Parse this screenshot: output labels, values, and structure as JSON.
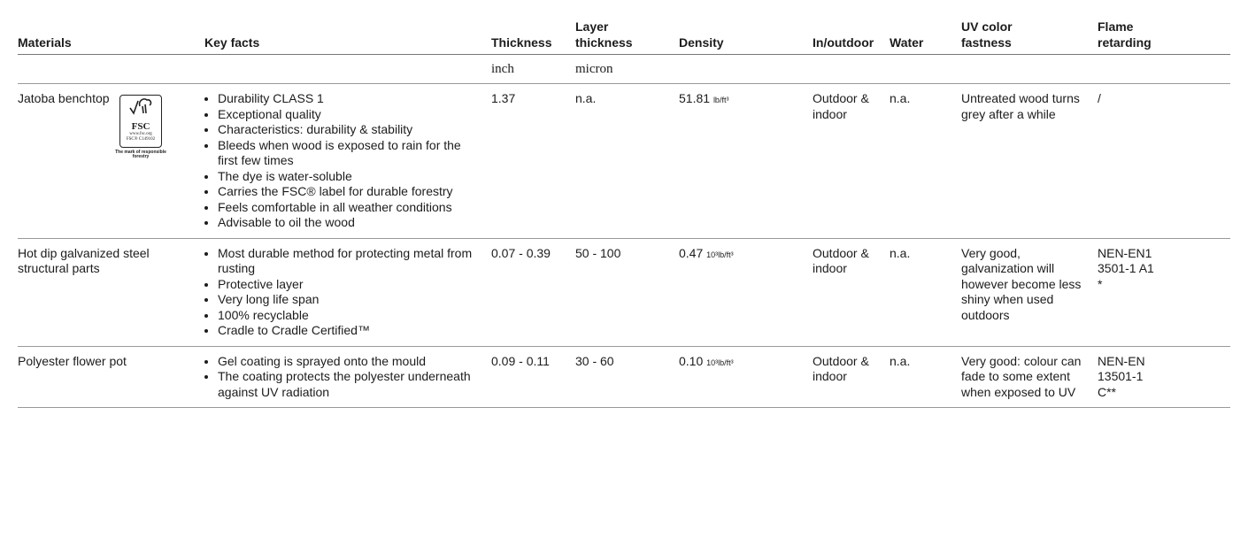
{
  "header": {
    "columns": [
      "Materials",
      "Key facts",
      "Thickness",
      "Layer thickness",
      "Density",
      "In/outdoor",
      "Water",
      "UV color fastness",
      "Flame retarding"
    ]
  },
  "units": {
    "thickness": "inch",
    "layer_thickness": "micron"
  },
  "logo": {
    "brand": "FSC",
    "site": "www.fsc.org",
    "code": "FSC® C149102",
    "tagline": "The mark of responsible forestry"
  },
  "table": {
    "rows": [
      {
        "material": "Jatoba benchtop",
        "facts": [
          "Durability CLASS 1",
          "Exceptional quality",
          "Characteristics: durability & stability",
          "Bleeds when wood is exposed to rain for the first few times",
          "The dye is water-soluble",
          "Carries the FSC® label for durable forestry",
          "Feels comfortable in all weather conditions",
          "Advisable to oil the wood"
        ],
        "thickness": "1.37",
        "layer": "n.a.",
        "density": {
          "value": "51.81",
          "unit": "lb/ft³"
        },
        "inout": "Outdoor & indoor",
        "water": "n.a.",
        "uv": "Untreated wood turns grey after a while",
        "flame": "/"
      },
      {
        "material": "Hot dip galvanized steel structural parts",
        "facts": [
          "Most durable method for protecting metal from rusting",
          "Protective layer",
          "Very long life span",
          "100% recyclable",
          "Cradle to Cradle Certified™"
        ],
        "thickness": "0.07 - 0.39",
        "layer": "50 - 100",
        "density": {
          "value": "0.47",
          "unit": "10³lb/ft³"
        },
        "inout": "Outdoor & indoor",
        "water": "n.a.",
        "uv": "Very good, galvanization will however become less shiny when used outdoors",
        "flame": "NEN-EN13501-1 A1 *"
      },
      {
        "material": "Polyester flower pot",
        "facts": [
          "Gel coating is sprayed onto the mould",
          "The coating protects the polyester underneath against UV radiation"
        ],
        "thickness": "0.09 - 0.11",
        "layer": "30 - 60",
        "density": {
          "value": "0.10",
          "unit": "10³lb/ft³"
        },
        "inout": "Outdoor & indoor",
        "water": "n.a.",
        "uv": "Very good: colour can fade to some extent when exposed to UV",
        "flame": "NEN-EN 13501-1 C**"
      }
    ]
  }
}
